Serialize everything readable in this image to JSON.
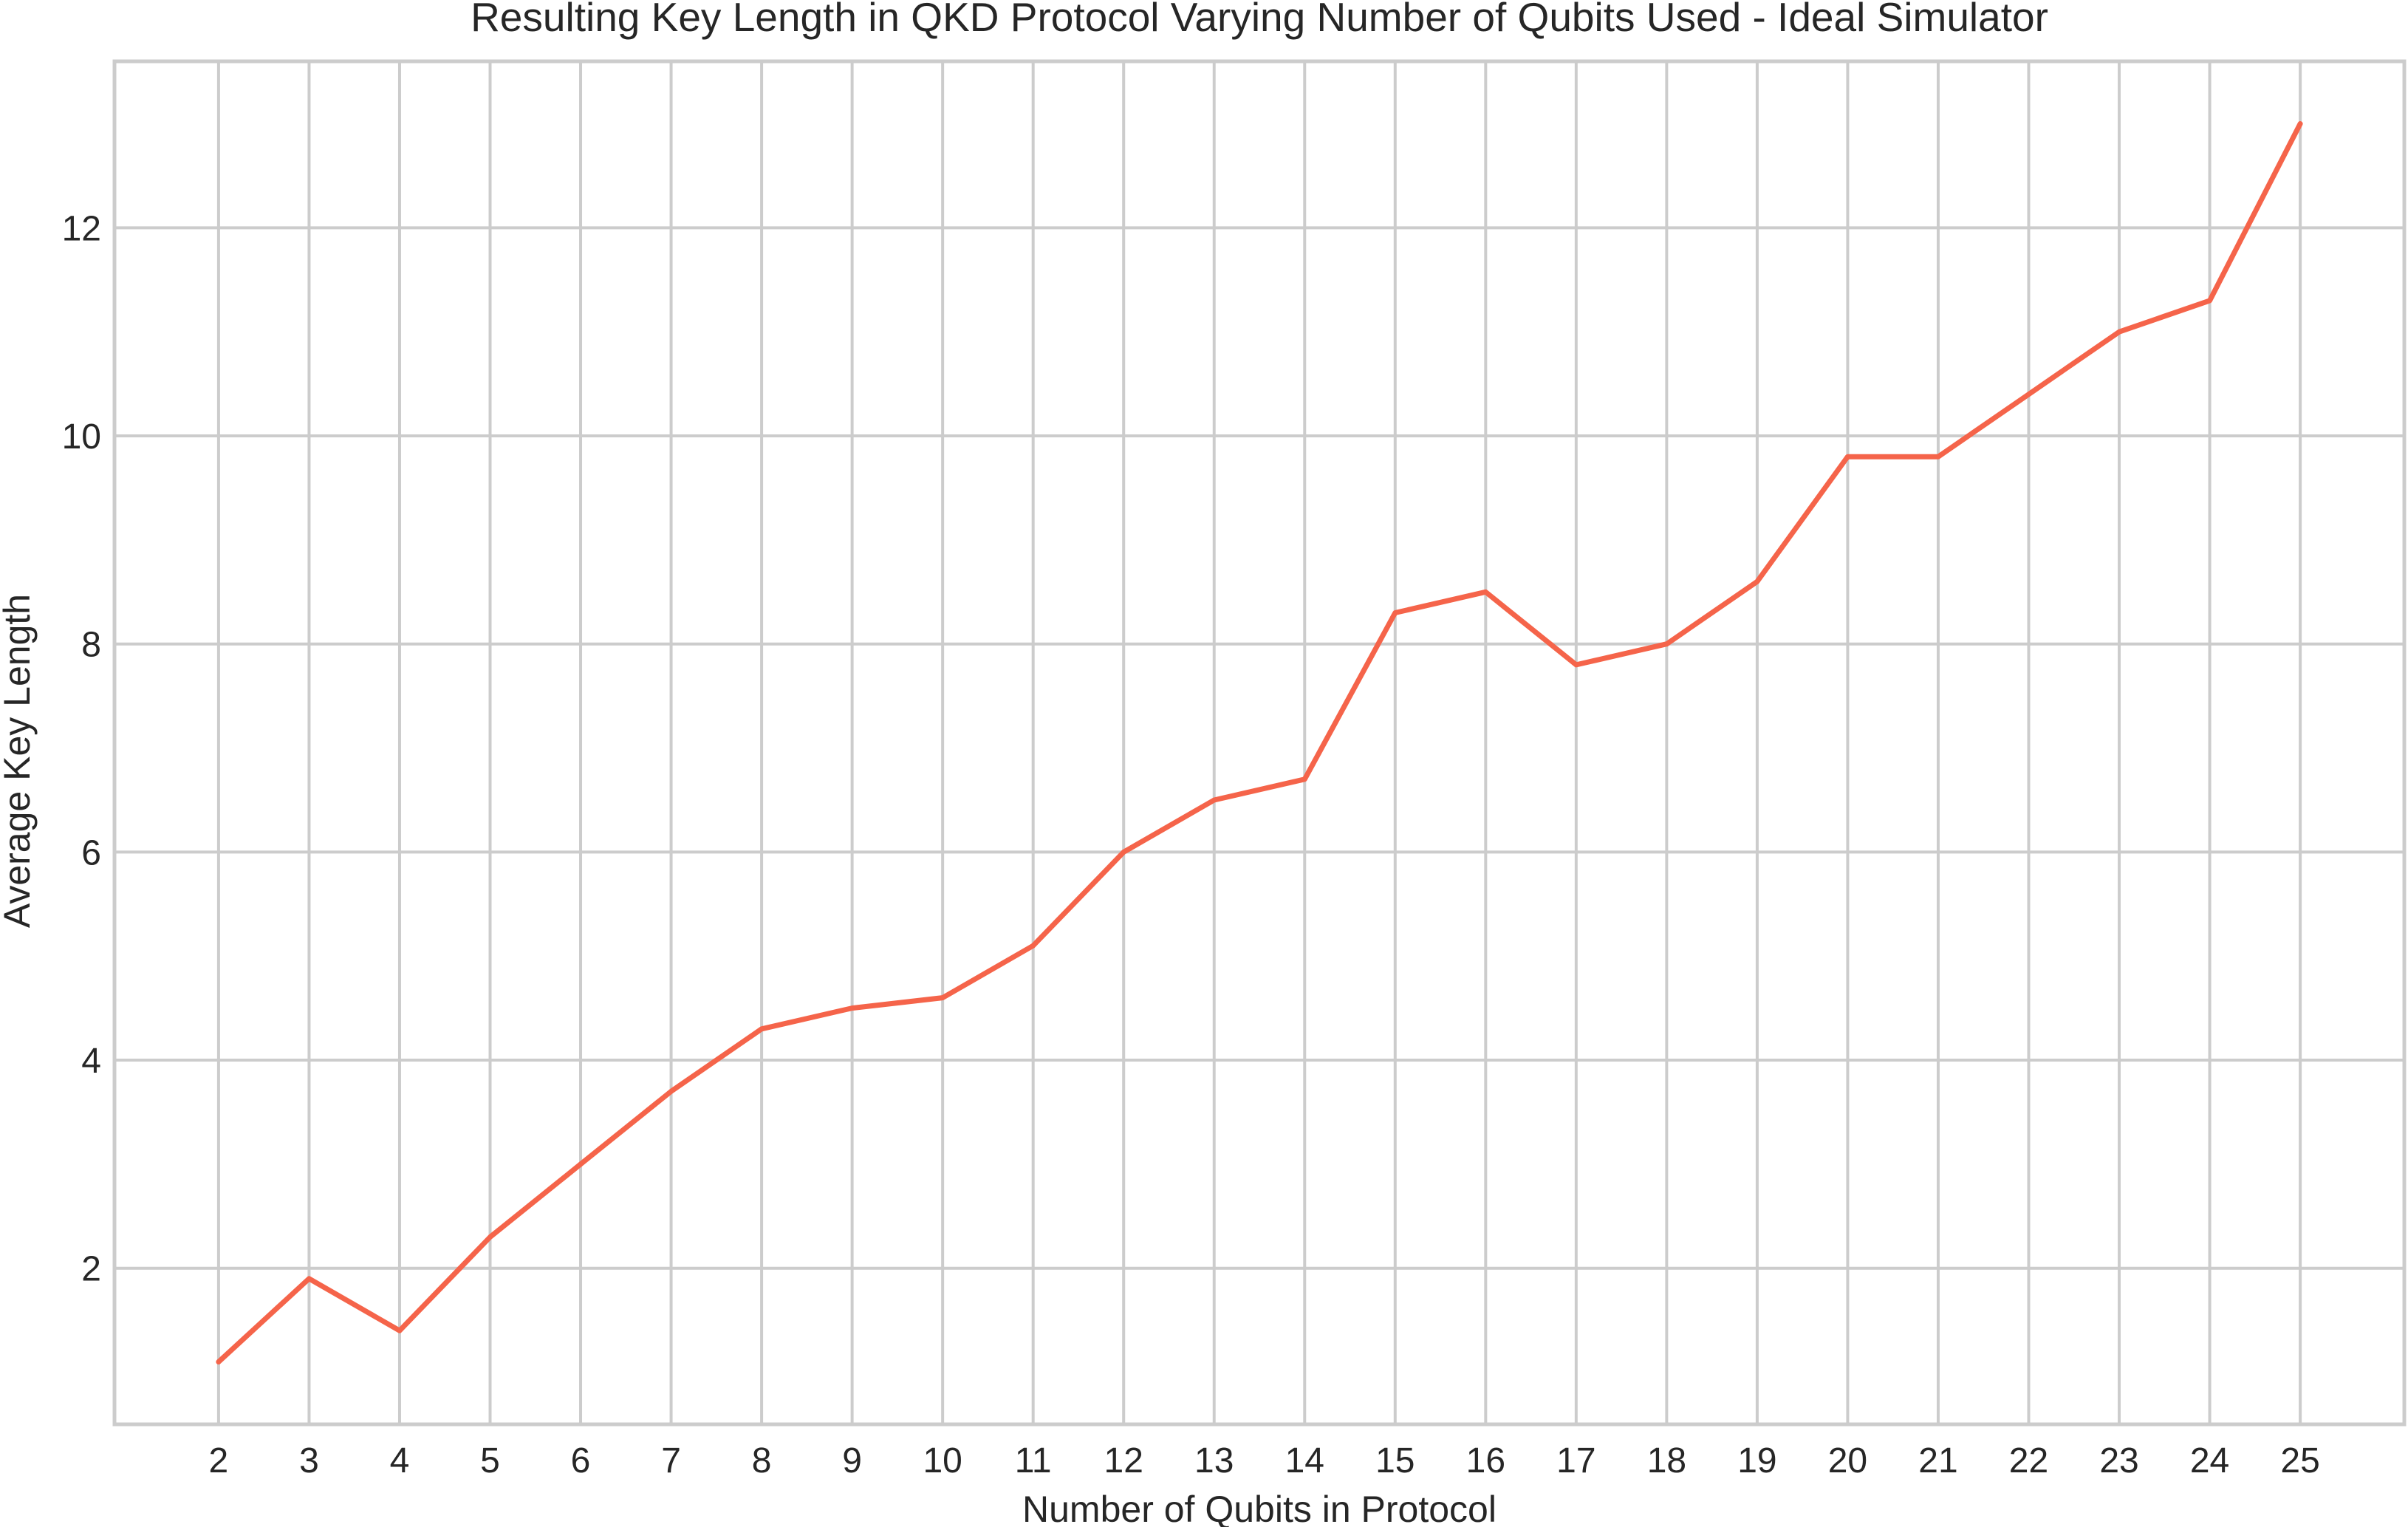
{
  "chart_data": {
    "type": "line",
    "title": "Resulting Key Length in QKD Protocol Varying Number of Qubits Used - Ideal Simulator",
    "xlabel": "Number of Qubits in Protocol",
    "ylabel": "Average Key Length",
    "x": [
      2,
      3,
      4,
      5,
      6,
      7,
      8,
      9,
      10,
      11,
      12,
      13,
      14,
      15,
      16,
      17,
      18,
      19,
      20,
      21,
      22,
      23,
      24,
      25
    ],
    "x_tick_labels": [
      "2",
      "3",
      "4",
      "5",
      "6",
      "7",
      "8",
      "9",
      "10",
      "11",
      "12",
      "13",
      "14",
      "15",
      "16",
      "17",
      "18",
      "19",
      "20",
      "21",
      "22",
      "23",
      "24",
      "25"
    ],
    "y_ticks": [
      2,
      4,
      6,
      8,
      10,
      12
    ],
    "y_tick_labels": [
      "2",
      "4",
      "6",
      "8",
      "10",
      "12"
    ],
    "xlim": [
      0.85,
      26.15
    ],
    "ylim": [
      0.5,
      13.6
    ],
    "grid": true,
    "series": [
      {
        "name": "Average Key Length",
        "color": "#f5644a",
        "values": [
          1.1,
          1.9,
          1.4,
          2.3,
          3.0,
          3.7,
          4.3,
          4.5,
          4.6,
          5.1,
          6.0,
          6.5,
          6.7,
          8.3,
          8.5,
          7.8,
          8.0,
          8.6,
          9.8,
          9.8,
          10.4,
          11.0,
          11.3,
          13.0
        ]
      }
    ]
  }
}
